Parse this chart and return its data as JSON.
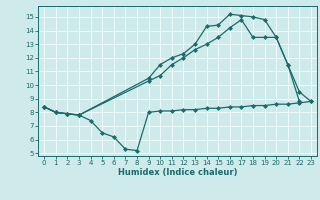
{
  "xlabel": "Humidex (Indice chaleur)",
  "xlim": [
    -0.5,
    23.5
  ],
  "ylim": [
    4.8,
    15.8
  ],
  "yticks": [
    5,
    6,
    7,
    8,
    9,
    10,
    11,
    12,
    13,
    14,
    15
  ],
  "xticks": [
    0,
    1,
    2,
    3,
    4,
    5,
    6,
    7,
    8,
    9,
    10,
    11,
    12,
    13,
    14,
    15,
    16,
    17,
    18,
    19,
    20,
    21,
    22,
    23
  ],
  "line_color": "#1a6b6b",
  "bg_color": "#ceeaea",
  "grid_color": "#f0fafa",
  "lines": [
    {
      "x": [
        0,
        1,
        2,
        3,
        4,
        5,
        6,
        7,
        8,
        9,
        10,
        11,
        12,
        13,
        14,
        15,
        16,
        17,
        18,
        19,
        20,
        21,
        22,
        23
      ],
      "y": [
        8.4,
        8.0,
        7.9,
        7.8,
        7.4,
        6.5,
        6.2,
        5.3,
        5.2,
        8.0,
        8.1,
        8.1,
        8.2,
        8.2,
        8.3,
        8.3,
        8.4,
        8.4,
        8.5,
        8.5,
        8.6,
        8.6,
        8.7,
        8.8
      ]
    },
    {
      "x": [
        0,
        1,
        2,
        3,
        9,
        10,
        11,
        12,
        13,
        14,
        15,
        16,
        17,
        18,
        19,
        20,
        21,
        22,
        23
      ],
      "y": [
        8.4,
        8.0,
        7.9,
        7.8,
        10.3,
        10.7,
        11.5,
        12.0,
        12.6,
        13.0,
        13.5,
        14.2,
        14.8,
        13.5,
        13.5,
        13.5,
        11.5,
        9.5,
        8.8
      ]
    },
    {
      "x": [
        0,
        1,
        2,
        3,
        9,
        10,
        11,
        12,
        13,
        14,
        15,
        16,
        17,
        18,
        19,
        20,
        21,
        22
      ],
      "y": [
        8.4,
        8.0,
        7.9,
        7.8,
        10.5,
        11.5,
        12.0,
        12.3,
        13.0,
        14.3,
        14.4,
        15.2,
        15.1,
        15.0,
        14.8,
        13.5,
        11.5,
        8.8
      ]
    }
  ]
}
